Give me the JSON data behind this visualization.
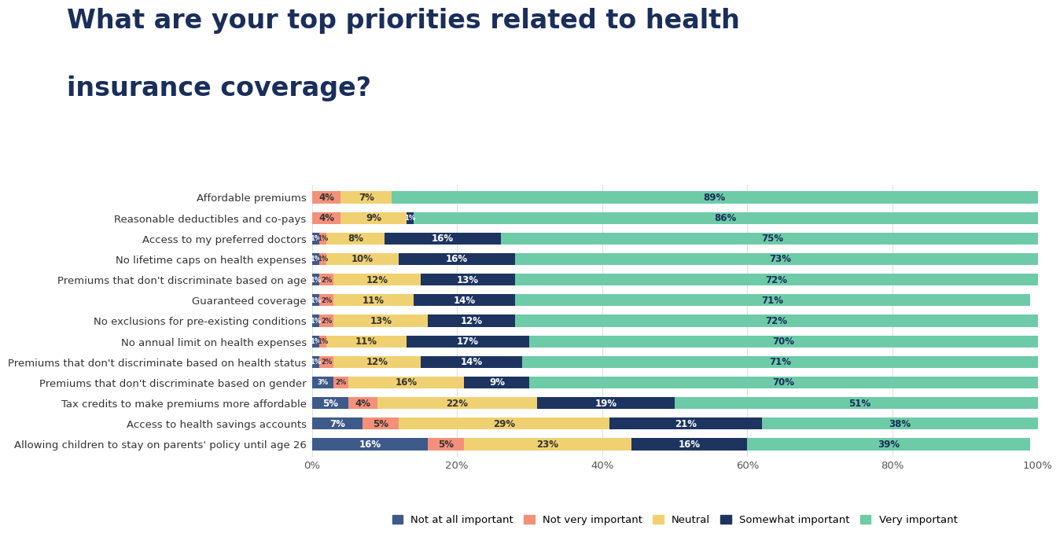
{
  "title_line1": "What are your top priorities related to health",
  "title_line2": "insurance coverage?",
  "categories": [
    "Affordable premiums",
    "Reasonable deductibles and co-pays",
    "Access to my preferred doctors",
    "No lifetime caps on health expenses",
    "Premiums that don't discriminate based on age",
    "Guaranteed coverage",
    "No exclusions for pre-existing conditions",
    "No annual limit on health expenses",
    "Premiums that don't discriminate based on health status",
    "Premiums that don't discriminate based on gender",
    "Tax credits to make premiums more affordable",
    "Access to health savings accounts",
    "Allowing children to stay on parents' policy until age 26"
  ],
  "series": {
    "Not at all important": [
      0,
      0,
      1,
      1,
      1,
      1,
      1,
      1,
      1,
      3,
      5,
      7,
      16
    ],
    "Not very important": [
      4,
      4,
      1,
      1,
      2,
      2,
      2,
      1,
      2,
      2,
      4,
      5,
      5
    ],
    "Neutral": [
      7,
      9,
      8,
      10,
      12,
      11,
      13,
      11,
      12,
      16,
      22,
      29,
      23
    ],
    "Somewhat important": [
      0,
      1,
      16,
      16,
      13,
      14,
      12,
      17,
      14,
      9,
      19,
      21,
      16
    ],
    "Very important": [
      89,
      86,
      75,
      73,
      72,
      71,
      72,
      70,
      71,
      70,
      51,
      38,
      39
    ]
  },
  "colors": {
    "Not at all important": "#3d5a8a",
    "Not very important": "#f4907a",
    "Neutral": "#f0d172",
    "Somewhat important": "#1d3461",
    "Very important": "#6ecba8"
  },
  "legend_order": [
    "Not at all important",
    "Not very important",
    "Neutral",
    "Somewhat important",
    "Very important"
  ],
  "background_color": "#ffffff",
  "title_color": "#1a2e5a",
  "title_fontsize": 24,
  "label_fontsize": 9.5,
  "bar_label_fontsize": 8.5,
  "bar_height": 0.58,
  "xlim": [
    0,
    100
  ]
}
